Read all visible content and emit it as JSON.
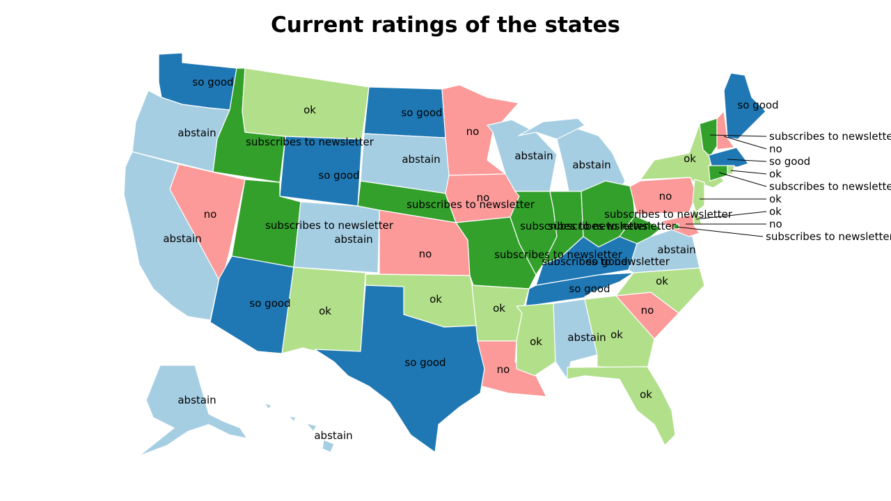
{
  "title": "Current ratings of the states",
  "colors": {
    "so good": "#1f78b4",
    "ok": "#b2df8a",
    "abstain": "#a6cee3",
    "no": "#fb9a99",
    "subscribes to newsletter": "#33a02c"
  },
  "states": {
    "WA": "so good",
    "OR": "abstain",
    "CA": "abstain",
    "NV": "no",
    "ID": "subscribes to newsletter",
    "MT": "ok",
    "WY": "so good",
    "UT": "subscribes to newsletter",
    "AZ": "so good",
    "CO": "abstain",
    "NM": "ok",
    "ND": "so good",
    "SD": "abstain",
    "NE": "subscribes to newsletter",
    "KS": "no",
    "OK": "ok",
    "TX": "so good",
    "MN": "no",
    "IA": "no",
    "MO": "subscribes to newsletter",
    "AR": "ok",
    "LA": "no",
    "WI": "abstain",
    "IL": "subscribes to newsletter",
    "MI": "abstain",
    "IN": "subscribes to newsletter",
    "OH": "subscribes to newsletter",
    "KY": "so good",
    "TN": "so good",
    "MS": "ok",
    "AL": "abstain",
    "GA": "ok",
    "FL": "ok",
    "SC": "no",
    "NC": "ok",
    "VA": "abstain",
    "WV": "subscribes to newsletter",
    "PA": "no",
    "NY": "ok",
    "ME": "so good",
    "VT": "subscribes to newsletter",
    "NH": "no",
    "MA": "so good",
    "RI": "ok",
    "CT": "subscribes to newsletter",
    "NJ": "ok",
    "DE": "ok",
    "MD": "no",
    "DC": "subscribes to newsletter",
    "AK": "abstain",
    "HI": "abstain"
  },
  "callouts": [
    {
      "state": "VT",
      "text": "subscribes to newsletter"
    },
    {
      "state": "NH",
      "text": "no"
    },
    {
      "state": "MA",
      "text": "so good"
    },
    {
      "state": "RI",
      "text": "ok"
    },
    {
      "state": "CT",
      "text": "subscribes to newsletter"
    },
    {
      "state": "NJ",
      "text": "ok"
    },
    {
      "state": "DE",
      "text": "ok"
    },
    {
      "state": "MD",
      "text": "no"
    },
    {
      "state": "DC",
      "text": "subscribes to newsletter DC"
    }
  ]
}
